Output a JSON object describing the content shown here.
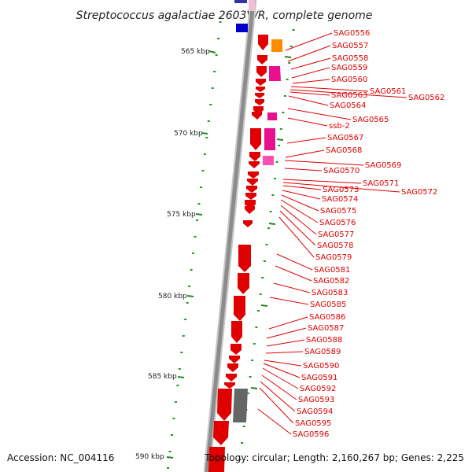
{
  "title": "Streptococcus agalactiae 2603V/R, complete genome",
  "footer": {
    "accession": "Accession: NC_004116",
    "topology": "Topology: circular; Length: 2,160,267 bp; Genes: 2,225"
  },
  "colors": {
    "gene_red": "#e00000",
    "gene_magenta": "#e8108c",
    "gene_pink": "#ff4fb0",
    "gene_orange": "#ff8c00",
    "gene_blue": "#0000cc",
    "gene_gray": "#666666",
    "backbone": "#8c8c8c",
    "tick_green": "#229922",
    "label_red": "#e00000"
  },
  "axis": {
    "kbp_labels": [
      "565 kbp",
      "570 kbp",
      "575 kbp",
      "580 kbp",
      "585 kbp",
      "590 kbp"
    ]
  },
  "gene_labels": [
    "SAG0556",
    "SAG0557",
    "SAG0558",
    "SAG0559",
    "SAG0560",
    "SAG0561",
    "SAG0562",
    "SAG0563",
    "SAG0564",
    "SAG0565",
    "ssb-2",
    "SAG0567",
    "SAG0568",
    "SAG0569",
    "SAG0570",
    "SAG0571",
    "SAG0572",
    "SAG0573",
    "SAG0574",
    "SAG0575",
    "SAG0576",
    "SAG0577",
    "SAG0578",
    "SAG0579",
    "SAG0581",
    "SAG0582",
    "SAG0583",
    "SAG0585",
    "SAG0586",
    "SAG0587",
    "SAG0588",
    "SAG0589",
    "SAG0590",
    "SAG0591",
    "SAG0592",
    "SAG0593",
    "SAG0594",
    "SAG0595",
    "SAG0596"
  ]
}
